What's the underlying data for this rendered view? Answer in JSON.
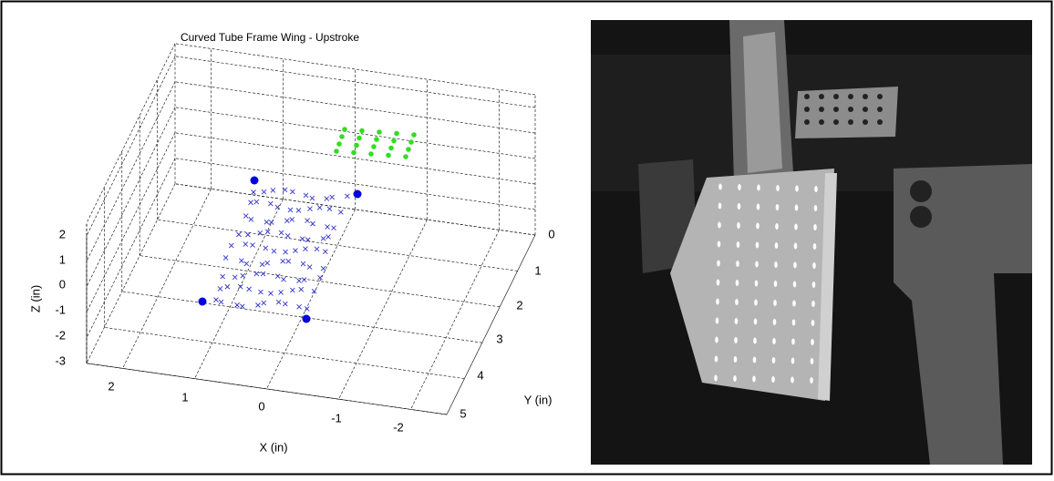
{
  "figure": {
    "title": "Curved Tube Frame Wing - Upstroke",
    "x_label": "X (in)",
    "y_label": "Y (in)",
    "z_label": "Z (in)",
    "x_ticks": [
      "2",
      "1",
      "0",
      "-1",
      "-2"
    ],
    "y_ticks": [
      "0",
      "1",
      "2",
      "3",
      "4",
      "5"
    ],
    "z_ticks": [
      "2",
      "1",
      "0",
      "-1",
      "-2",
      "-3"
    ]
  }
}
